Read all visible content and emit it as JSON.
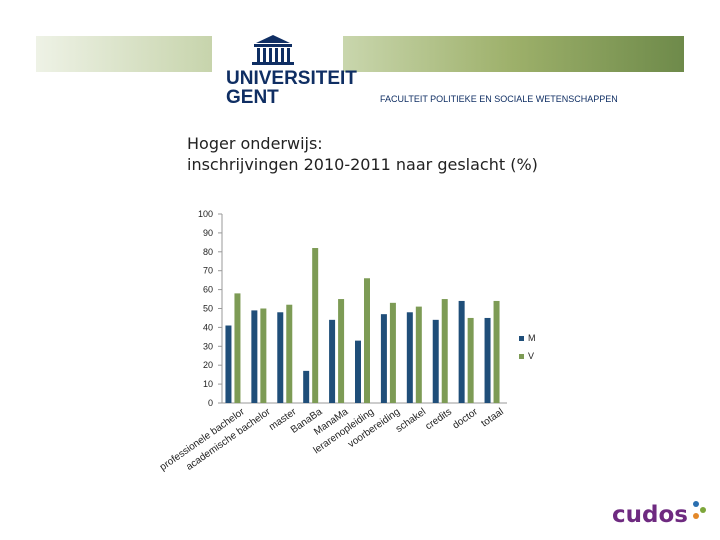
{
  "header": {
    "university_line1": "UNIVERSITEIT",
    "university_line2": "GENT",
    "faculty": "FACULTEIT POLITIEKE EN SOCIALE WETENSCHAPPEN",
    "colors": {
      "navy": "#0f2e63",
      "banner_green": "#8aa05a"
    }
  },
  "chart_data": {
    "type": "bar",
    "title_lines": [
      "Hoger onderwijs:",
      "inschrijvingen 2010-2011 naar geslacht (%)"
    ],
    "categories": [
      "professionele bachelor",
      "academische bachelor",
      "master",
      "BanaBa",
      "ManaMa",
      "lerarenopleiding",
      "voorbereiding",
      "schakel",
      "credits",
      "doctor",
      "totaal"
    ],
    "series": [
      {
        "name": "M",
        "color": "#1f4e79",
        "values": [
          41,
          49,
          48,
          17,
          44,
          33,
          47,
          48,
          44,
          54,
          45
        ]
      },
      {
        "name": "V",
        "color": "#7d9b55",
        "values": [
          58,
          50,
          52,
          82,
          55,
          66,
          53,
          51,
          55,
          45,
          54
        ]
      }
    ],
    "ylim": [
      0,
      100
    ],
    "yticks": [
      "0",
      "10",
      "20",
      "30",
      "40",
      "50",
      "60",
      "70",
      "80",
      "90",
      "100"
    ],
    "grid": false,
    "legend": "right"
  },
  "footer": {
    "logo_text": "cudos"
  }
}
